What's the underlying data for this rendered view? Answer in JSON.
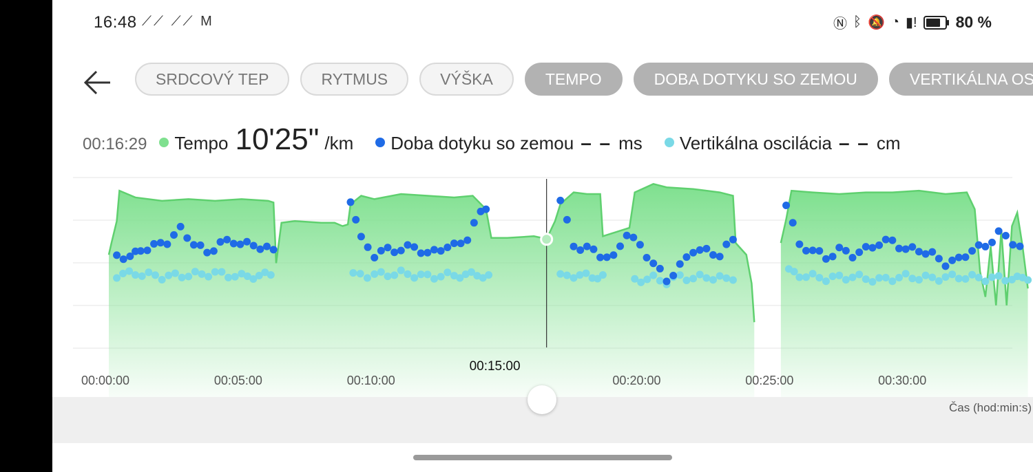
{
  "status_bar": {
    "time": "16:48",
    "left_icons": [
      "activity-app-icon",
      "activity-app-icon",
      "gmail-icon"
    ],
    "right_icons": [
      "nfc-icon",
      "bluetooth-icon",
      "mute-icon",
      "wifi-icon",
      "alert-icon",
      "battery-icon"
    ],
    "battery_level": 0.8,
    "battery_text": "80 %"
  },
  "nav": {
    "back_icon": "back-arrow-icon"
  },
  "tabs": [
    {
      "label": "SRDCOVÝ TEP",
      "state": "outline"
    },
    {
      "label": "RYTMUS",
      "state": "outline"
    },
    {
      "label": "VÝŠKA",
      "state": "outline"
    },
    {
      "label": "TEMPO",
      "state": "filled"
    },
    {
      "label": "DOBA DOTYKU SO ZEMOU",
      "state": "filled"
    },
    {
      "label": "VERTIKÁLNA OSCILÁCIA",
      "state": "filled"
    }
  ],
  "readout": {
    "timestamp": "00:16:29",
    "tempo": {
      "label": "Tempo",
      "value": "10'25\"",
      "unit": "/km",
      "color": "#7fe08f"
    },
    "contact": {
      "label": "Doba dotyku so zemou",
      "value": "– –",
      "unit": "ms",
      "color": "#1f6be6"
    },
    "vertical": {
      "label": "Vertikálna oscilácia",
      "value": "– –",
      "unit": "cm",
      "color": "#7ad9e6"
    }
  },
  "chart_data": {
    "type": "area",
    "x_unit": "minutes",
    "xlim": [
      0,
      35
    ],
    "tick_labels": [
      "00:00:00",
      "00:05:00",
      "00:10:00",
      "00:15:00",
      "00:20:00",
      "00:25:00",
      "00:30:00"
    ],
    "cursor_label": "00:15:00",
    "cursor_x": 16.48,
    "xlabel": "Čas (hod:min:s)",
    "y_relative_range": [
      0,
      1
    ],
    "grid": true,
    "colors": {
      "tempo": "#7fe08f",
      "contact": "#1f6be6",
      "vertical": "#7ad9e6"
    },
    "series": [
      {
        "key": "tempo",
        "style": "area",
        "segments": [
          [
            [
              0,
              0.55
            ],
            [
              0.1,
              0.62
            ],
            [
              0.3,
              0.75
            ],
            [
              0.4,
              0.93
            ],
            [
              1,
              0.89
            ],
            [
              2,
              0.87
            ],
            [
              3,
              0.88
            ],
            [
              4,
              0.87
            ],
            [
              5,
              0.88
            ],
            [
              6,
              0.87
            ],
            [
              6.2,
              0.86
            ],
            [
              6.3,
              0.5
            ],
            [
              6.5,
              0.74
            ],
            [
              7,
              0.75
            ],
            [
              8,
              0.74
            ],
            [
              8.5,
              0.74
            ],
            [
              8.8,
              0.72
            ],
            [
              9,
              0.73
            ],
            [
              9.1,
              0.85
            ],
            [
              9.5,
              0.9
            ],
            [
              10,
              0.88
            ],
            [
              11,
              0.91
            ],
            [
              12,
              0.9
            ],
            [
              13,
              0.89
            ],
            [
              13.7,
              0.9
            ],
            [
              14.2,
              0.82
            ],
            [
              14.4,
              0.65
            ],
            [
              15,
              0.65
            ],
            [
              16,
              0.66
            ],
            [
              16.3,
              0.65
            ],
            [
              16.5,
              0.65
            ],
            [
              16.8,
              0.75
            ],
            [
              17,
              0.85
            ],
            [
              17.5,
              0.92
            ],
            [
              18,
              0.91
            ],
            [
              18.5,
              0.91
            ],
            [
              18.6,
              0.66
            ],
            [
              19,
              0.68
            ],
            [
              19.6,
              0.71
            ],
            [
              19.8,
              0.92
            ],
            [
              20.5,
              0.97
            ],
            [
              21,
              0.95
            ],
            [
              22,
              0.94
            ],
            [
              23,
              0.92
            ],
            [
              23.5,
              0.9
            ],
            [
              23.6,
              0.62
            ],
            [
              24,
              0.55
            ],
            [
              24.2,
              0.38
            ],
            [
              24.3,
              0.15
            ]
          ],
          [
            [
              25.3,
              0.62
            ],
            [
              25.5,
              0.76
            ],
            [
              25.7,
              0.93
            ],
            [
              26.5,
              0.92
            ],
            [
              27.5,
              0.91
            ],
            [
              28.5,
              0.92
            ],
            [
              29.5,
              0.92
            ],
            [
              30.5,
              0.93
            ],
            [
              31.5,
              0.91
            ],
            [
              32.3,
              0.92
            ],
            [
              32.6,
              0.82
            ],
            [
              32.8,
              0.45
            ],
            [
              33,
              0.3
            ],
            [
              33.2,
              0.6
            ],
            [
              33.4,
              0.25
            ],
            [
              33.6,
              0.7
            ],
            [
              33.8,
              0.25
            ],
            [
              34,
              0.72
            ],
            [
              34.2,
              0.8
            ],
            [
              34.4,
              0.6
            ],
            [
              34.6,
              0.35
            ]
          ]
        ]
      },
      {
        "key": "contact",
        "style": "points",
        "segments": [
          [
            [
              0.3,
              0.55
            ],
            [
              0.8,
              0.53
            ],
            [
              1.2,
              0.58
            ],
            [
              1.7,
              0.6
            ],
            [
              2.2,
              0.63
            ],
            [
              2.7,
              0.7
            ],
            [
              3.2,
              0.62
            ],
            [
              3.7,
              0.56
            ],
            [
              4.2,
              0.62
            ],
            [
              4.7,
              0.63
            ],
            [
              5.2,
              0.61
            ],
            [
              5.7,
              0.6
            ],
            [
              6.2,
              0.58
            ]
          ],
          [
            [
              9.1,
              0.88
            ],
            [
              9.5,
              0.64
            ],
            [
              10,
              0.55
            ],
            [
              10.5,
              0.58
            ],
            [
              11,
              0.58
            ],
            [
              11.5,
              0.6
            ],
            [
              12,
              0.55
            ],
            [
              12.5,
              0.59
            ],
            [
              13,
              0.6
            ],
            [
              13.5,
              0.65
            ],
            [
              14,
              0.8
            ],
            [
              14.2,
              0.82
            ]
          ],
          [
            [
              17,
              0.88
            ],
            [
              17.5,
              0.6
            ],
            [
              18,
              0.59
            ],
            [
              18.5,
              0.55
            ],
            [
              19,
              0.53
            ],
            [
              19.5,
              0.68
            ],
            [
              20,
              0.6
            ],
            [
              20.5,
              0.5
            ],
            [
              21,
              0.4
            ],
            [
              21.5,
              0.48
            ],
            [
              22,
              0.58
            ],
            [
              22.5,
              0.57
            ],
            [
              23,
              0.55
            ],
            [
              23.5,
              0.64
            ]
          ],
          [
            [
              25.5,
              0.86
            ],
            [
              26,
              0.6
            ],
            [
              26.5,
              0.58
            ],
            [
              27,
              0.53
            ],
            [
              27.5,
              0.58
            ],
            [
              28,
              0.55
            ],
            [
              28.5,
              0.58
            ],
            [
              29,
              0.62
            ],
            [
              29.5,
              0.63
            ],
            [
              30,
              0.58
            ],
            [
              30.5,
              0.58
            ],
            [
              31,
              0.55
            ],
            [
              31.5,
              0.5
            ],
            [
              32,
              0.52
            ],
            [
              32.5,
              0.58
            ],
            [
              33,
              0.6
            ],
            [
              33.5,
              0.68
            ],
            [
              34.3,
              0.6
            ]
          ]
        ]
      },
      {
        "key": "vertical",
        "style": "points",
        "segments": [
          [
            [
              0.3,
              0.43
            ],
            [
              1,
              0.44
            ],
            [
              2,
              0.42
            ],
            [
              3,
              0.43
            ],
            [
              4,
              0.44
            ],
            [
              5,
              0.42
            ],
            [
              6.1,
              0.43
            ]
          ],
          [
            [
              9.2,
              0.43
            ],
            [
              10,
              0.43
            ],
            [
              11,
              0.44
            ],
            [
              12,
              0.42
            ],
            [
              13,
              0.43
            ],
            [
              14.3,
              0.43
            ]
          ],
          [
            [
              17,
              0.42
            ],
            [
              17.5,
              0.43
            ],
            [
              18.2,
              0.42
            ],
            [
              18.6,
              0.43
            ]
          ],
          [
            [
              19.8,
              0.4
            ],
            [
              20.5,
              0.41
            ],
            [
              21,
              0.39
            ],
            [
              21.5,
              0.42
            ],
            [
              22,
              0.41
            ],
            [
              22.5,
              0.42
            ],
            [
              23,
              0.41
            ],
            [
              23.5,
              0.4
            ]
          ],
          [
            [
              25.6,
              0.45
            ],
            [
              26,
              0.43
            ],
            [
              27,
              0.41
            ],
            [
              28,
              0.42
            ],
            [
              29,
              0.4
            ],
            [
              30,
              0.42
            ],
            [
              31,
              0.41
            ],
            [
              32,
              0.42
            ],
            [
              33,
              0.41
            ],
            [
              34,
              0.41
            ],
            [
              34.6,
              0.4
            ]
          ]
        ]
      }
    ]
  }
}
